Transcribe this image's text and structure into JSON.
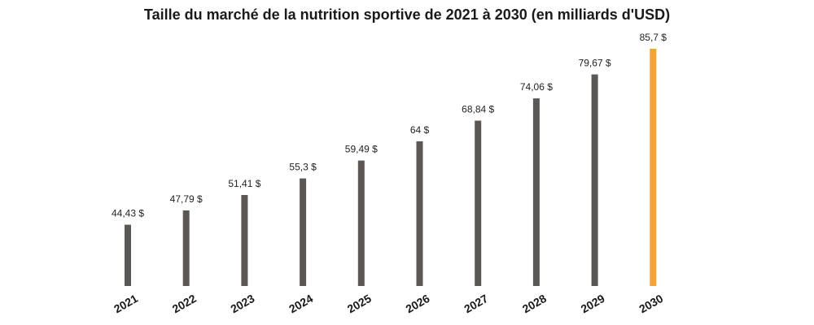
{
  "chart_data": {
    "type": "bar",
    "title": "Taille du marché de la nutrition sportive de 2021 à 2030 (en milliards d'USD)",
    "categories": [
      "2021",
      "2022",
      "2023",
      "2024",
      "2025",
      "2026",
      "2027",
      "2028",
      "2029",
      "2030"
    ],
    "values": [
      44.43,
      47.79,
      51.41,
      55.3,
      59.49,
      64,
      68.84,
      74.06,
      79.67,
      85.7
    ],
    "value_labels": [
      "44,43 $",
      "47,79 $",
      "51,41 $",
      "55,3 $",
      "59,49 $",
      "64 $",
      "68,84 $",
      "74,06 $",
      "79,67 $",
      "85,7 $"
    ],
    "colors": {
      "default": "#5a5754",
      "highlight": "#f2a33a"
    },
    "highlight_index": 9,
    "xlabel": "",
    "ylabel": "",
    "grid": false,
    "legend": "none"
  }
}
